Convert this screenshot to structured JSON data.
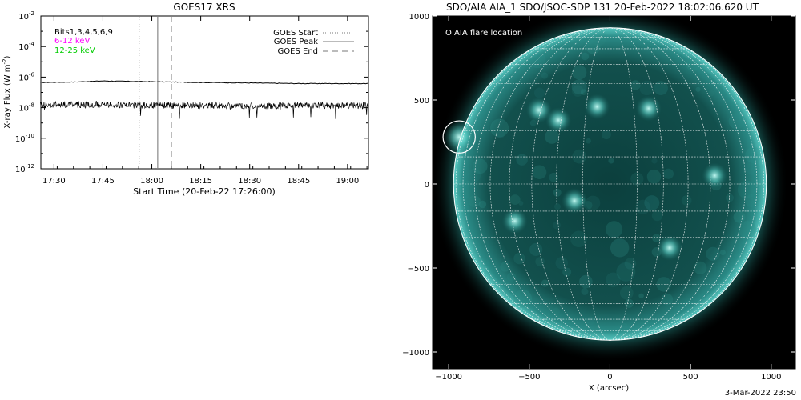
{
  "chart_data": [
    {
      "type": "line",
      "title": "GOES17 XRS",
      "xlabel": "Start Time (20-Feb-22 17:26:00)",
      "ylabel_main": "X-ray Flux (W m",
      "ylabel_sup": "-2",
      "ylabel_close": ")",
      "ylog": true,
      "ylim_exp": [
        -12,
        -2
      ],
      "y_ticks": [
        {
          "base": "10",
          "exp": "-2",
          "e": -2
        },
        {
          "base": "10",
          "exp": "-4",
          "e": -4
        },
        {
          "base": "10",
          "exp": "-6",
          "e": -6
        },
        {
          "base": "10",
          "exp": "-8",
          "e": -8
        },
        {
          "base": "10",
          "exp": "-10",
          "e": -10
        },
        {
          "base": "10",
          "exp": "-12",
          "e": -12
        }
      ],
      "xlim_min": [
        17.433,
        19.107
      ],
      "x_ticks": [
        {
          "label": "17:30",
          "t": 17.5
        },
        {
          "label": "17:45",
          "t": 17.75
        },
        {
          "label": "18:00",
          "t": 18.0
        },
        {
          "label": "18:15",
          "t": 18.25
        },
        {
          "label": "18:30",
          "t": 18.5
        },
        {
          "label": "18:45",
          "t": 18.75
        },
        {
          "label": "19:00",
          "t": 19.0
        }
      ],
      "bits_label": "Bits1,3,4,5,6,9",
      "series": [
        {
          "name": "6-12 keV",
          "color": "#ff00ff",
          "display_color": "#000000",
          "points": [
            [
              17.43,
              -6.35
            ],
            [
              17.6,
              -6.32
            ],
            [
              17.75,
              -6.25
            ],
            [
              17.85,
              -6.27
            ],
            [
              18.0,
              -6.3
            ],
            [
              18.25,
              -6.35
            ],
            [
              18.5,
              -6.38
            ],
            [
              18.75,
              -6.42
            ],
            [
              19.0,
              -6.42
            ],
            [
              19.107,
              -6.42
            ]
          ]
        },
        {
          "name": "12-25 keV",
          "color": "#00cc00",
          "display_color": "#000000",
          "points": [
            [
              17.43,
              -7.8
            ],
            [
              17.75,
              -7.8
            ],
            [
              18.0,
              -7.85
            ],
            [
              18.25,
              -7.85
            ],
            [
              18.5,
              -7.9
            ],
            [
              18.75,
              -7.85
            ],
            [
              19.0,
              -7.88
            ],
            [
              19.107,
              -7.85
            ]
          ]
        }
      ],
      "legend": [
        {
          "label": "GOES Start",
          "style": "dotted"
        },
        {
          "label": "GOES Peak",
          "style": "solid"
        },
        {
          "label": "GOES End",
          "style": "dashed"
        }
      ],
      "markers": [
        {
          "name": "GOES Start",
          "t": 17.935,
          "style": "dotted"
        },
        {
          "name": "GOES Peak",
          "t": 18.03,
          "style": "solid"
        },
        {
          "name": "GOES End",
          "t": 18.1,
          "style": "dashed"
        }
      ],
      "legend_position": "top-right"
    },
    {
      "type": "image",
      "title": "SDO/AIA AIA_1 SDO/JSOC-SDP 131 20-Feb-2022 18:02:06.620 UT",
      "xlabel": "X (arcsec)",
      "xlim": [
        -1100,
        1150
      ],
      "ylim": [
        -1100,
        1000
      ],
      "x_ticks": [
        -1000,
        -500,
        0,
        500,
        1000
      ],
      "y_ticks": [
        -1000,
        -500,
        0,
        500,
        1000
      ],
      "x_tick_labels": [
        "−1000",
        "−500",
        "0",
        "500",
        "1000"
      ],
      "y_tick_labels": [
        "−1000",
        "−500",
        "0",
        "500",
        "1000"
      ],
      "colormap": "teal",
      "background_color": "#000000",
      "disk_color": "#0f4a48",
      "solar_radius_arcsec": 970,
      "grid_spacing_deg": 10,
      "flare_legend": "O AIA flare location",
      "flare_location_arcsec": [
        -935,
        280
      ],
      "flare_circle_radius_arcsec": 100,
      "active_regions_arcsec": [
        [
          -935,
          280
        ],
        [
          -440,
          440
        ],
        [
          -80,
          460
        ],
        [
          -320,
          380
        ],
        [
          240,
          450
        ],
        [
          650,
          50
        ],
        [
          370,
          -380
        ],
        [
          -590,
          -220
        ],
        [
          -220,
          -100
        ]
      ]
    }
  ],
  "footer": {
    "timestamp": "3-Mar-2022 23:50"
  }
}
